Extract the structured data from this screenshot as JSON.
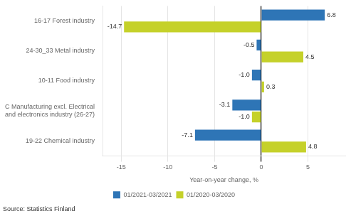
{
  "chart_data": {
    "type": "bar",
    "orientation": "horizontal",
    "categories": [
      "19-22 Chemical industry",
      "C Manufacturing excl. Electrical\nand electronics industry (26-27)",
      "10-11 Food industry",
      "24-30_33 Metal industry",
      "16-17 Forest industry"
    ],
    "series": [
      {
        "name": "01/2021-03/2021",
        "color": "#2E75B6",
        "values": [
          -7.1,
          -3.1,
          -1.0,
          -0.5,
          6.8
        ],
        "value_labels": [
          "-7.1",
          "-3.1",
          "-1.0",
          "-0.5",
          "6.8"
        ]
      },
      {
        "name": "01/2020-03/2020",
        "color": "#C5D12A",
        "values": [
          4.8,
          -1.0,
          0.3,
          4.5,
          -14.7
        ],
        "value_labels": [
          "4.8",
          "-1.0",
          "0.3",
          "4.5",
          "-14.7"
        ]
      }
    ],
    "x_label": "Year-on-year change, %",
    "xlim": [
      -17,
      9
    ],
    "xticks": [
      -15,
      -10,
      -5,
      0,
      5
    ],
    "grid": true,
    "legend": "bottom",
    "data_labels": true,
    "annotations": [
      "Source: Statistics Finland"
    ]
  }
}
